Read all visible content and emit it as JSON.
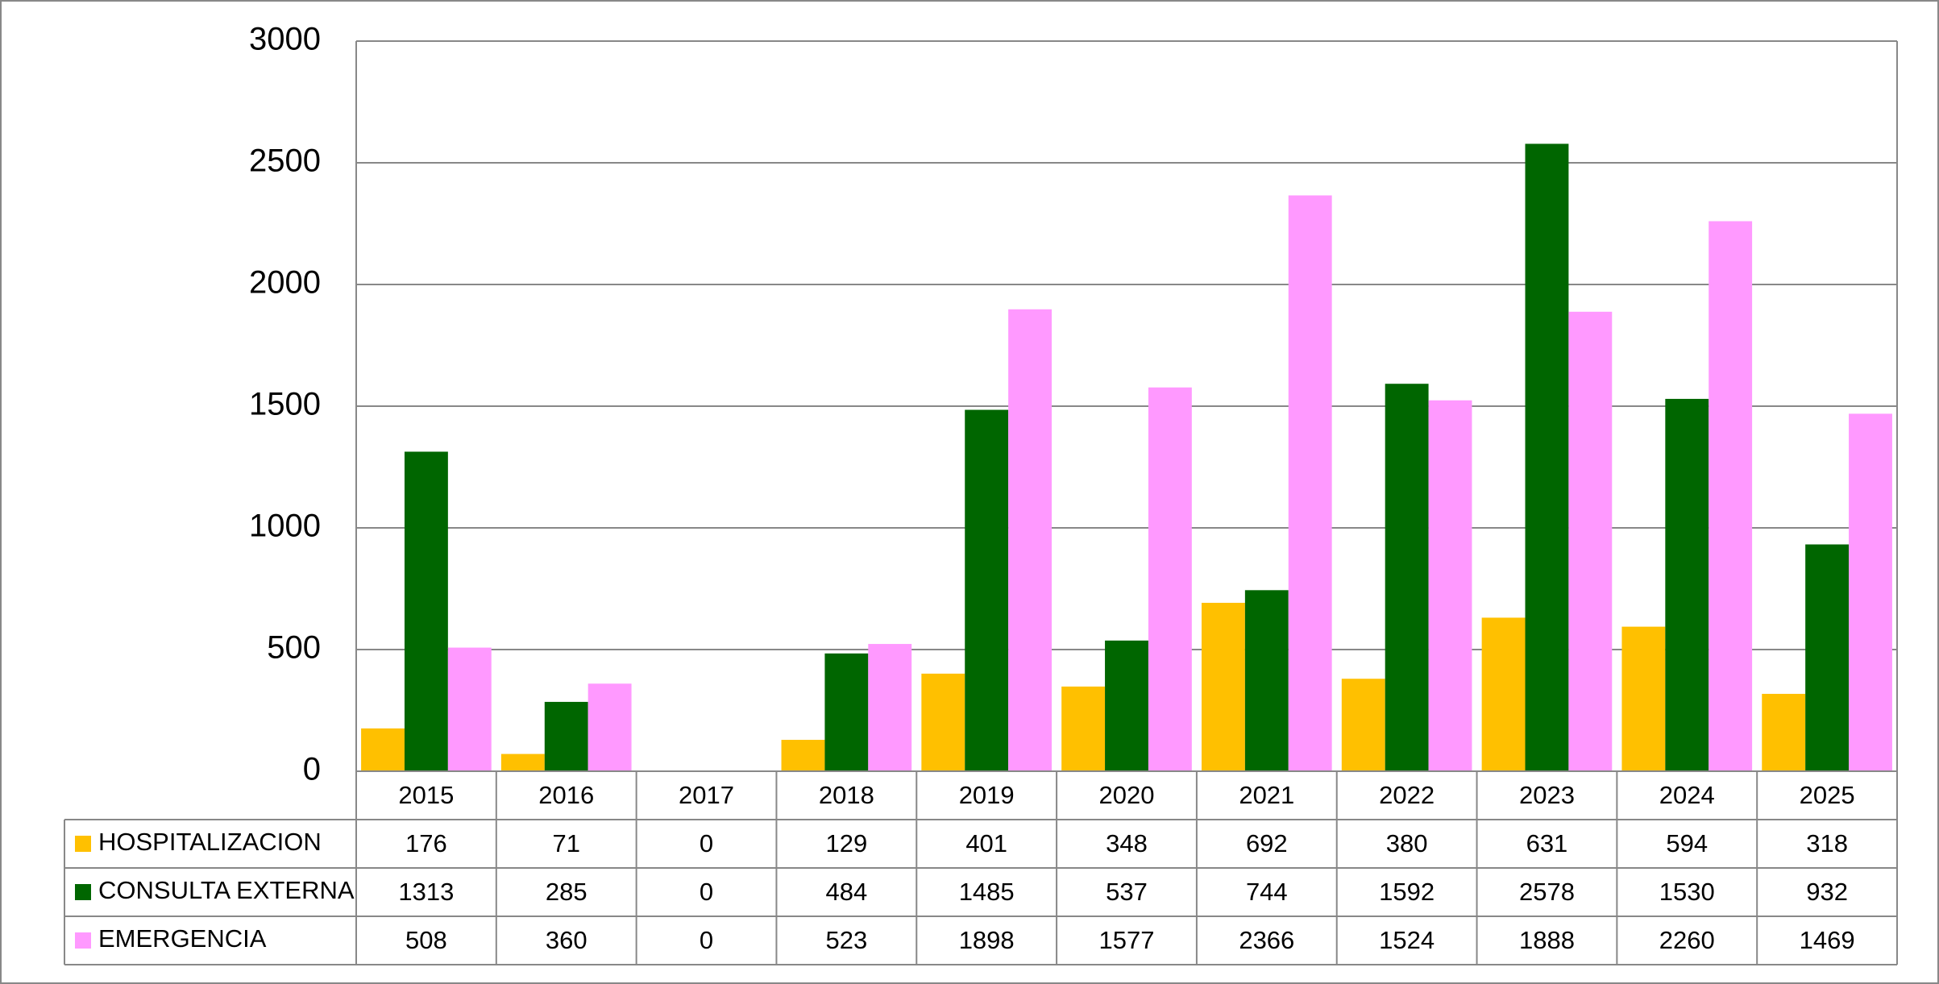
{
  "chart_data": {
    "type": "bar",
    "categories": [
      "2015",
      "2016",
      "2017",
      "2018",
      "2019",
      "2020",
      "2021",
      "2022",
      "2023",
      "2024",
      "2025"
    ],
    "series": [
      {
        "name": "HOSPITALIZACION",
        "color": "#ffc000",
        "values": [
          176,
          71,
          0,
          129,
          401,
          348,
          692,
          380,
          631,
          594,
          318
        ]
      },
      {
        "name": "CONSULTA EXTERNA",
        "color": "#006600",
        "values": [
          1313,
          285,
          0,
          484,
          1485,
          537,
          744,
          1592,
          2578,
          1530,
          932
        ]
      },
      {
        "name": "EMERGENCIA",
        "color": "#ff99ff",
        "values": [
          508,
          360,
          0,
          523,
          1898,
          1577,
          2366,
          1524,
          1888,
          2260,
          1469
        ]
      }
    ],
    "ylim": [
      0,
      3000
    ],
    "yticks": [
      0,
      500,
      1000,
      1500,
      2000,
      2500,
      3000
    ],
    "grid": true
  }
}
